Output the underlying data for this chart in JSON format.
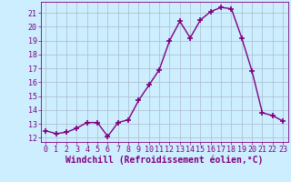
{
  "x": [
    0,
    1,
    2,
    3,
    4,
    5,
    6,
    7,
    8,
    9,
    10,
    11,
    12,
    13,
    14,
    15,
    16,
    17,
    18,
    19,
    20,
    21,
    22,
    23
  ],
  "y": [
    12.5,
    12.3,
    12.4,
    12.7,
    13.1,
    13.1,
    12.1,
    13.1,
    13.3,
    14.7,
    15.8,
    16.9,
    19.0,
    20.4,
    19.2,
    20.5,
    21.1,
    21.4,
    21.3,
    19.2,
    16.8,
    13.8,
    13.6,
    13.2
  ],
  "line_color": "#800080",
  "marker": "+",
  "marker_size": 4,
  "linewidth": 1.0,
  "bg_color": "#cceeff",
  "grid_color": "#aabbcc",
  "xlabel": "Windchill (Refroidissement éolien,°C)",
  "xlim": [
    -0.5,
    23.5
  ],
  "ylim": [
    11.7,
    21.8
  ],
  "yticks": [
    12,
    13,
    14,
    15,
    16,
    17,
    18,
    19,
    20,
    21
  ],
  "xticks": [
    0,
    1,
    2,
    3,
    4,
    5,
    6,
    7,
    8,
    9,
    10,
    11,
    12,
    13,
    14,
    15,
    16,
    17,
    18,
    19,
    20,
    21,
    22,
    23
  ],
  "tick_color": "#800080",
  "label_color": "#800080",
  "tick_fontsize": 6,
  "xlabel_fontsize": 7
}
